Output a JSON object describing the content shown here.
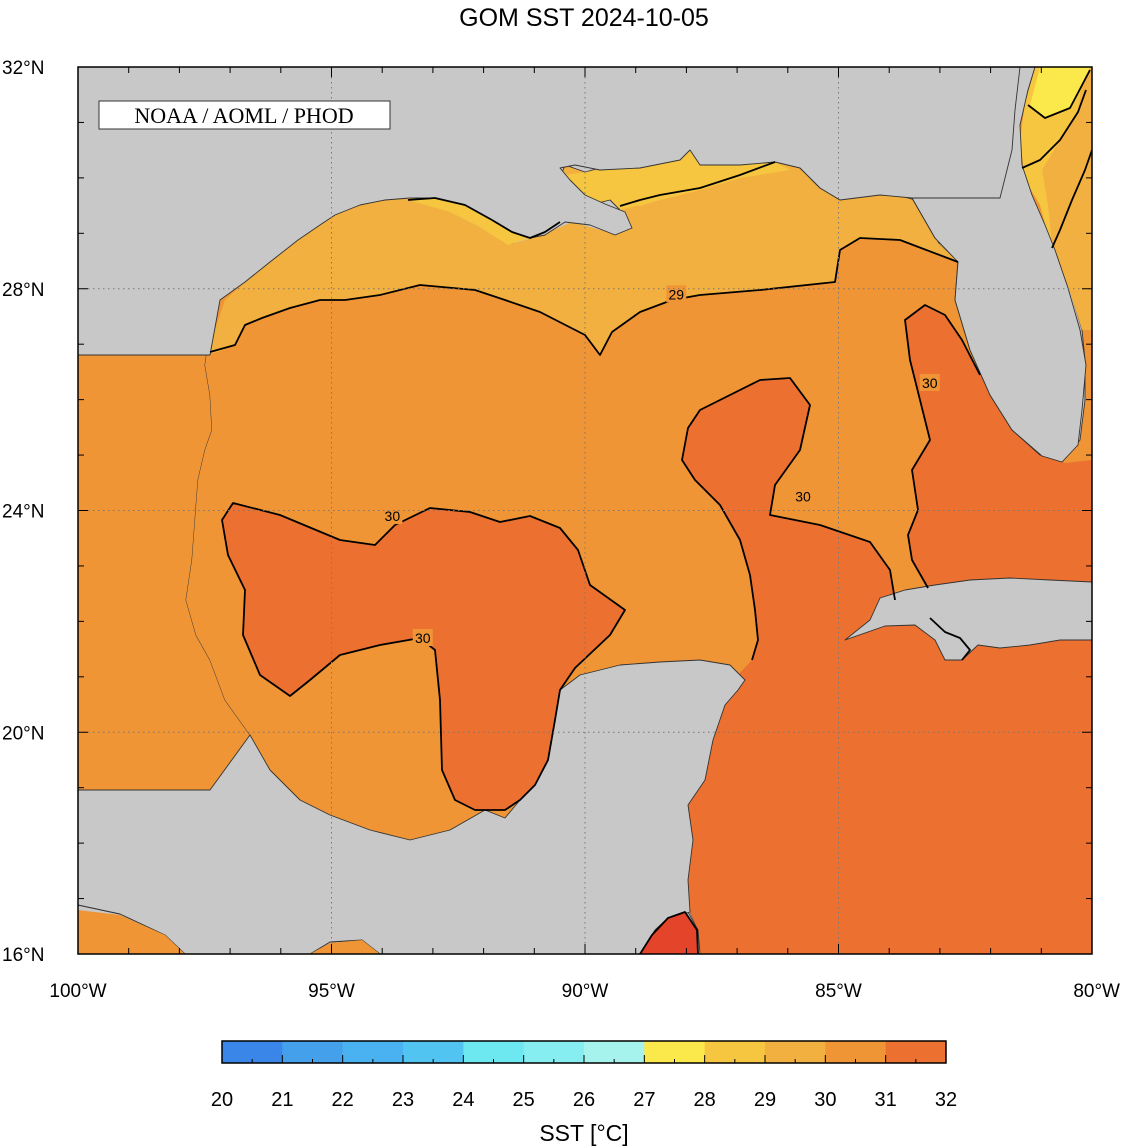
{
  "title": "GOM SST  2024-10-05",
  "credit": "NOAA / AOML / PHOD",
  "lat_ticks": [
    {
      "value": 32,
      "label": "32°N"
    },
    {
      "value": 28,
      "label": "28°N"
    },
    {
      "value": 24,
      "label": "24°N"
    },
    {
      "value": 20,
      "label": "20°N"
    },
    {
      "value": 16,
      "label": "16°N"
    }
  ],
  "lon_ticks": [
    {
      "value": -100,
      "label": "100°W"
    },
    {
      "value": -95,
      "label": "95°W"
    },
    {
      "value": -90,
      "label": "90°W"
    },
    {
      "value": -85,
      "label": "85°W"
    },
    {
      "value": -80,
      "label": "80°W"
    }
  ],
  "contour_labels": [
    {
      "text": "29",
      "lon": -88.2,
      "lat": 27.9
    },
    {
      "text": "30",
      "lon": -83.2,
      "lat": 26.3
    },
    {
      "text": "30",
      "lon": -85.7,
      "lat": 24.25
    },
    {
      "text": "30",
      "lon": -93.8,
      "lat": 23.9
    },
    {
      "text": "30",
      "lon": -93.2,
      "lat": 21.7
    }
  ],
  "colorbar": {
    "label": "SST [°C]",
    "min": 20,
    "max": 32,
    "tick_labels": [
      "20",
      "21",
      "22",
      "23",
      "24",
      "25",
      "26",
      "27",
      "28",
      "29",
      "30",
      "31",
      "32"
    ],
    "colors": [
      "#3a86e8",
      "#45a0ec",
      "#4ab2f0",
      "#52c4f2",
      "#6ee8f0",
      "#86eef0",
      "#a6f3ee",
      "#fbe84a",
      "#f6c640",
      "#f2b040",
      "#ef9535",
      "#ec7030",
      "#e4442a"
    ]
  },
  "colors": {
    "land": "#c8c8c8",
    "sst_28_29": "#f2b040",
    "sst_29_30": "#ef9535",
    "sst_30_31": "#ec7030",
    "sst_31_32": "#e4442a",
    "sst_27_28": "#f6c640",
    "sst_26_27": "#fbe84a"
  }
}
